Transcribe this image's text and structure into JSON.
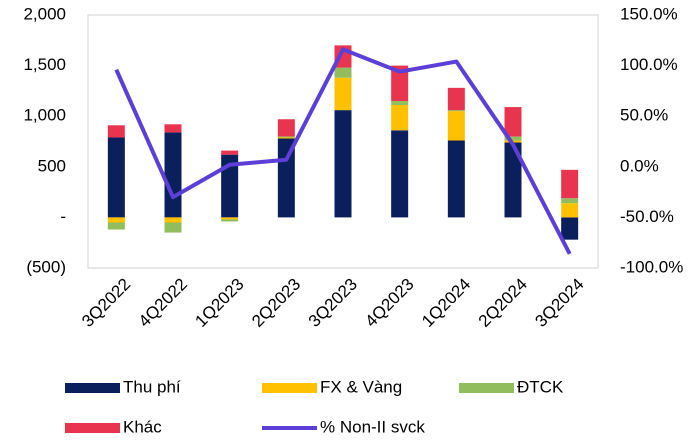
{
  "chart_data": {
    "type": "bar",
    "categories": [
      "3Q2022",
      "4Q2022",
      "1Q2023",
      "2Q2023",
      "3Q2023",
      "4Q2023",
      "1Q2024",
      "2Q2024",
      "3Q2024"
    ],
    "series": [
      {
        "name": "Thu phí",
        "color": "#0b1f5c",
        "values": [
          790,
          840,
          620,
          780,
          1060,
          860,
          760,
          740,
          -220
        ]
      },
      {
        "name": "FX & Vàng",
        "color": "#ffc000",
        "values": [
          -50,
          -50,
          -20,
          10,
          320,
          250,
          290,
          20,
          140
        ]
      },
      {
        "name": "ĐTCK",
        "color": "#92bd5c",
        "values": [
          -70,
          -100,
          -20,
          10,
          100,
          40,
          10,
          40,
          50
        ]
      },
      {
        "name": "Khác",
        "color": "#e8344e",
        "values": [
          120,
          80,
          40,
          170,
          220,
          350,
          220,
          290,
          280
        ]
      },
      {
        "name": "% Non-II svck",
        "color": "#5b3fd6",
        "type": "line",
        "axis": "y2",
        "values": [
          96,
          -30,
          2,
          7,
          116,
          94,
          104,
          22,
          -86
        ]
      }
    ],
    "ylim": [
      -500,
      2000
    ],
    "yticks": [
      {
        "value": -500,
        "label": "(500)"
      },
      {
        "value": 0,
        "label": "-"
      },
      500,
      {
        "value": 1000,
        "label": "1,000"
      },
      {
        "value": 1500,
        "label": "1,500"
      },
      {
        "value": 2000,
        "label": "2,000"
      }
    ],
    "y2lim": [
      -100,
      150
    ],
    "y2ticks": [
      {
        "value": -100,
        "label": "-100.0%"
      },
      {
        "value": -50,
        "label": "-50.0%"
      },
      {
        "value": 0,
        "label": "0.0%"
      },
      {
        "value": 50,
        "label": "50.0%"
      },
      {
        "value": 100,
        "label": "100.0%"
      },
      {
        "value": 150,
        "label": "150.0%"
      }
    ],
    "grid": false,
    "legend": "bottom"
  }
}
